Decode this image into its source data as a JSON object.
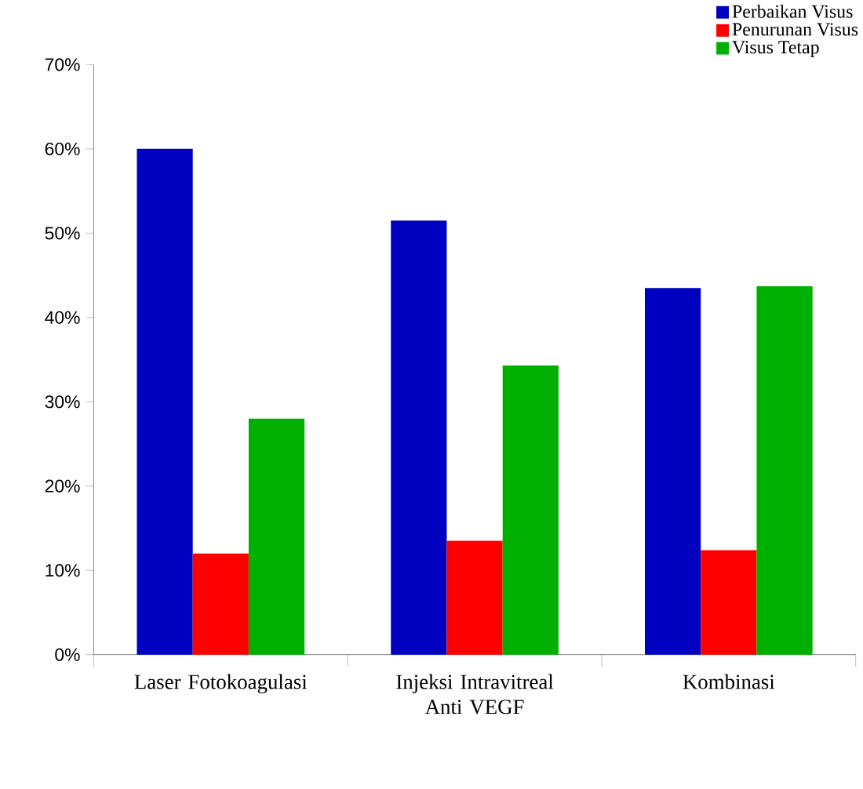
{
  "chart_data": {
    "type": "bar",
    "categories": [
      "Laser Fotokoagulasi",
      "Injeksi Intravitreal Anti VEGF",
      "Kombinasi"
    ],
    "series": [
      {
        "name": "Perbaikan Visus",
        "color": "#0000c0",
        "values": [
          60,
          51.5,
          43.5
        ]
      },
      {
        "name": "Penurunan Visus",
        "color": "#ff0000",
        "values": [
          12,
          13.5,
          12.4
        ]
      },
      {
        "name": "Visus Tetap",
        "color": "#00b000",
        "values": [
          28,
          34.3,
          43.7
        ]
      }
    ],
    "ylim": [
      0,
      70
    ],
    "yticks": [
      {
        "value": 0,
        "label": "0%"
      },
      {
        "value": 10,
        "label": "10%"
      },
      {
        "value": 20,
        "label": "20%"
      },
      {
        "value": 30,
        "label": "30%"
      },
      {
        "value": 40,
        "label": "40%"
      },
      {
        "value": 50,
        "label": "50%"
      },
      {
        "value": 60,
        "label": "60%"
      },
      {
        "value": 70,
        "label": "70%"
      }
    ],
    "grid": false,
    "legend": "top right"
  }
}
